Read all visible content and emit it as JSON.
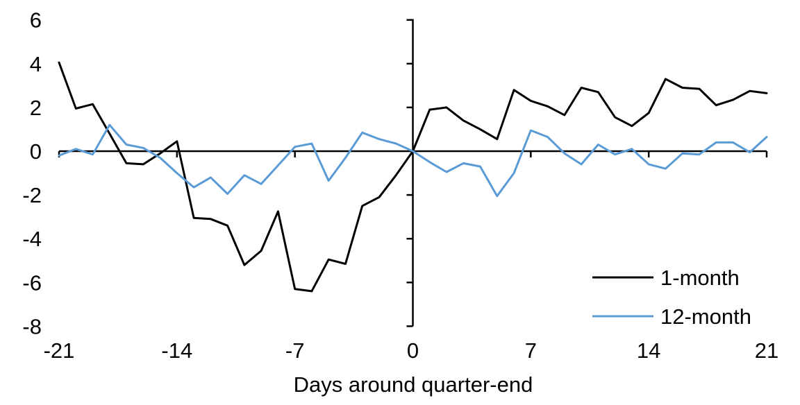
{
  "chart_data": {
    "type": "line",
    "title": "",
    "xlabel": "Days around quarter-end",
    "ylabel": "",
    "xlim": [
      -21,
      21
    ],
    "ylim": [
      -8,
      6
    ],
    "x_ticks": [
      -21,
      -14,
      -7,
      0,
      7,
      14,
      21
    ],
    "y_ticks": [
      6,
      4,
      2,
      0,
      -2,
      -4,
      -6,
      -8
    ],
    "grid": false,
    "legend_position": "lower-right",
    "axis_color": "#000000",
    "x": [
      -21,
      -20,
      -19,
      -18,
      -17,
      -16,
      -15,
      -14,
      -13,
      -12,
      -11,
      -10,
      -9,
      -8,
      -7,
      -6,
      -5,
      -4,
      -3,
      -2,
      -1,
      0,
      1,
      2,
      3,
      4,
      5,
      6,
      7,
      8,
      9,
      10,
      11,
      12,
      13,
      14,
      15,
      16,
      17,
      18,
      19,
      20,
      21
    ],
    "series": [
      {
        "name": "1-month",
        "color": "#000000",
        "values": [
          4.05,
          1.95,
          2.15,
          0.8,
          -0.55,
          -0.6,
          -0.1,
          0.45,
          -3.05,
          -3.1,
          -3.4,
          -5.2,
          -4.55,
          -2.75,
          -6.3,
          -6.4,
          -4.95,
          -5.15,
          -2.5,
          -2.1,
          -1.1,
          0.0,
          1.9,
          2.0,
          1.4,
          1.0,
          0.55,
          2.8,
          2.3,
          2.05,
          1.65,
          2.9,
          2.7,
          1.55,
          1.15,
          1.75,
          3.3,
          2.9,
          2.85,
          2.1,
          2.35,
          2.75,
          2.65
        ]
      },
      {
        "name": "12-month",
        "color": "#5B9BD5",
        "values": [
          -0.2,
          0.1,
          -0.15,
          1.2,
          0.3,
          0.15,
          -0.3,
          -1.0,
          -1.65,
          -1.2,
          -1.95,
          -1.1,
          -1.5,
          -0.65,
          0.2,
          0.35,
          -1.35,
          -0.3,
          0.85,
          0.55,
          0.35,
          0.0,
          -0.5,
          -0.95,
          -0.55,
          -0.7,
          -2.05,
          -1.0,
          0.95,
          0.65,
          -0.1,
          -0.6,
          0.3,
          -0.15,
          0.1,
          -0.6,
          -0.8,
          -0.1,
          -0.15,
          0.4,
          0.4,
          -0.05,
          0.65
        ]
      }
    ]
  }
}
